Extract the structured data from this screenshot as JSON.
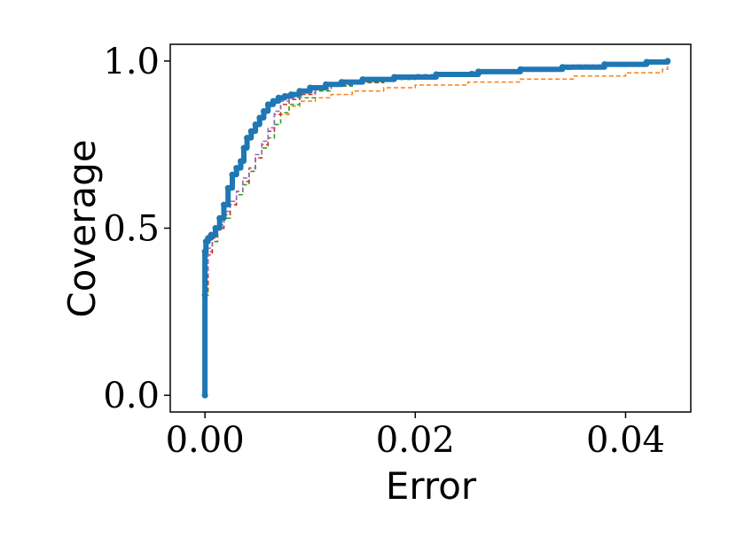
{
  "chart_data": {
    "type": "line",
    "title": "",
    "xlabel": "Error",
    "ylabel": "Coverage",
    "xlim": [
      -0.0033,
      0.0462
    ],
    "ylim": [
      -0.05,
      1.05
    ],
    "xticks": [
      0.0,
      0.02,
      0.04
    ],
    "xtick_labels": [
      "0.00",
      "0.02",
      "0.04"
    ],
    "yticks": [
      0.0,
      0.5,
      1.0
    ],
    "ytick_labels": [
      "0.0",
      "0.5",
      "1.0"
    ],
    "grid": false,
    "legend": "none",
    "series": [
      {
        "color": "#1f77b4",
        "style": "thick-solid-markers",
        "x": [
          0,
          0,
          0,
          0.0001,
          0.0003,
          0.0006,
          0.001,
          0.0014,
          0.0018,
          0.0022,
          0.0026,
          0.003,
          0.0034,
          0.0037,
          0.004,
          0.0044,
          0.0048,
          0.0052,
          0.0056,
          0.006,
          0.0065,
          0.007,
          0.0076,
          0.0082,
          0.009,
          0.01,
          0.0115,
          0.013,
          0.015,
          0.018,
          0.022,
          0.026,
          0.03,
          0.034,
          0.038,
          0.042,
          0.044
        ],
        "y": [
          0,
          0.3,
          0.43,
          0.46,
          0.47,
          0.48,
          0.5,
          0.53,
          0.57,
          0.62,
          0.66,
          0.68,
          0.7,
          0.74,
          0.77,
          0.79,
          0.81,
          0.83,
          0.85,
          0.87,
          0.88,
          0.89,
          0.895,
          0.9,
          0.91,
          0.92,
          0.93,
          0.937,
          0.945,
          0.952,
          0.96,
          0.968,
          0.975,
          0.982,
          0.99,
          0.997,
          1.0
        ]
      },
      {
        "color": "#ff7f0e",
        "style": "dashed",
        "x": [
          0,
          0,
          0.0003,
          0.0007,
          0.0012,
          0.0018,
          0.0024,
          0.003,
          0.0036,
          0.0042,
          0.0048,
          0.0054,
          0.006,
          0.0066,
          0.0072,
          0.008,
          0.009,
          0.0105,
          0.012,
          0.014,
          0.017,
          0.02,
          0.025,
          0.03,
          0.035,
          0.04,
          0.0435,
          0.044
        ],
        "y": [
          0,
          0.3,
          0.43,
          0.46,
          0.5,
          0.53,
          0.57,
          0.6,
          0.63,
          0.67,
          0.71,
          0.74,
          0.77,
          0.81,
          0.84,
          0.865,
          0.88,
          0.89,
          0.9,
          0.91,
          0.92,
          0.928,
          0.937,
          0.946,
          0.955,
          0.965,
          0.975,
          0.99
        ]
      },
      {
        "color": "#2ca02c",
        "style": "dashed",
        "x": [
          0,
          0,
          0.0003,
          0.0007,
          0.0012,
          0.0018,
          0.0024,
          0.003,
          0.0036,
          0.0042,
          0.0048,
          0.0054,
          0.006,
          0.0066,
          0.0072,
          0.008,
          0.009,
          0.0105,
          0.012,
          0.014,
          0.017,
          0.02,
          0.025,
          0.03,
          0.035,
          0.04,
          0.044
        ],
        "y": [
          0,
          0.3,
          0.43,
          0.46,
          0.5,
          0.53,
          0.57,
          0.6,
          0.63,
          0.67,
          0.71,
          0.74,
          0.77,
          0.81,
          0.845,
          0.87,
          0.89,
          0.91,
          0.925,
          0.935,
          0.945,
          0.955,
          0.965,
          0.975,
          0.985,
          0.993,
          1.0
        ]
      },
      {
        "color": "#d62728",
        "style": "dashed",
        "x": [
          0,
          0,
          0.0003,
          0.0007,
          0.0012,
          0.0018,
          0.0024,
          0.003,
          0.0036,
          0.0042,
          0.0048,
          0.0054,
          0.006,
          0.0066,
          0.0072,
          0.008,
          0.009,
          0.0105,
          0.012,
          0.014,
          0.017,
          0.02,
          0.025,
          0.03,
          0.035,
          0.04,
          0.044
        ],
        "y": [
          0,
          0.32,
          0.42,
          0.47,
          0.5,
          0.54,
          0.57,
          0.61,
          0.64,
          0.68,
          0.71,
          0.75,
          0.79,
          0.84,
          0.87,
          0.885,
          0.9,
          0.915,
          0.928,
          0.937,
          0.947,
          0.957,
          0.967,
          0.977,
          0.987,
          0.994,
          1.0
        ]
      },
      {
        "color": "#9467bd",
        "style": "dashed",
        "x": [
          0,
          0,
          0.0003,
          0.0007,
          0.0012,
          0.0018,
          0.0024,
          0.003,
          0.0036,
          0.0042,
          0.0048,
          0.0054,
          0.006,
          0.0066,
          0.0072,
          0.008,
          0.009,
          0.0105,
          0.012,
          0.014,
          0.017,
          0.02,
          0.025,
          0.03,
          0.035,
          0.04,
          0.044
        ],
        "y": [
          0,
          0.36,
          0.44,
          0.48,
          0.51,
          0.55,
          0.58,
          0.61,
          0.65,
          0.68,
          0.72,
          0.76,
          0.8,
          0.85,
          0.88,
          0.89,
          0.905,
          0.918,
          0.93,
          0.94,
          0.95,
          0.959,
          0.969,
          0.978,
          0.988,
          0.995,
          1.0
        ]
      }
    ]
  }
}
